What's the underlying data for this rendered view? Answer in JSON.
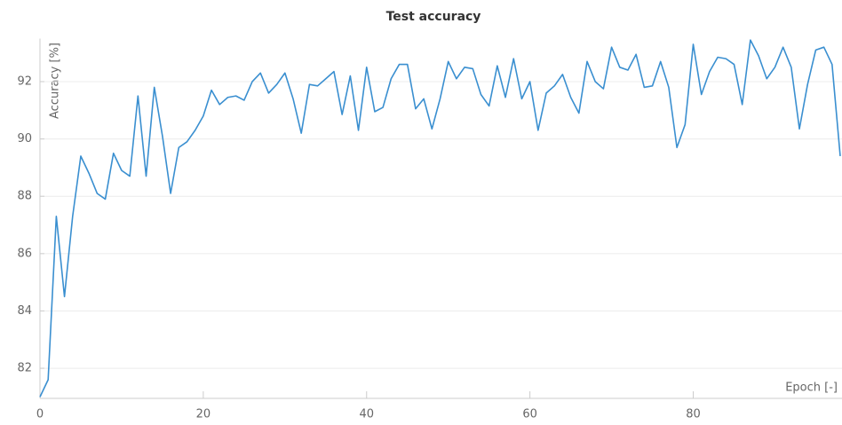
{
  "chart_data": {
    "type": "line",
    "title": "Test accuracy",
    "x_label": "Epoch [-]",
    "y_label": "Accuracy [%]",
    "x": [
      0,
      1,
      2,
      3,
      4,
      5,
      6,
      7,
      8,
      9,
      10,
      11,
      12,
      13,
      14,
      15,
      16,
      17,
      18,
      19,
      20,
      21,
      22,
      23,
      24,
      25,
      26,
      27,
      28,
      29,
      30,
      31,
      32,
      33,
      34,
      35,
      36,
      37,
      38,
      39,
      40,
      41,
      42,
      43,
      44,
      45,
      46,
      47,
      48,
      49,
      50,
      51,
      52,
      53,
      54,
      55,
      56,
      57,
      58,
      59,
      60,
      61,
      62,
      63,
      64,
      65,
      66,
      67,
      68,
      69,
      70,
      71,
      72,
      73,
      74,
      75,
      76,
      77,
      78,
      79,
      80,
      81,
      82,
      83,
      84,
      85,
      86,
      87,
      88,
      89,
      90,
      91,
      92,
      93,
      94,
      95,
      96,
      97,
      98
    ],
    "series": [
      {
        "name": "Test accuracy",
        "color": "#3a8fd0",
        "values": [
          81.0,
          81.6,
          87.3,
          84.5,
          87.3,
          89.4,
          88.8,
          88.1,
          87.9,
          89.5,
          88.9,
          88.7,
          91.5,
          88.7,
          91.8,
          90.1,
          88.1,
          89.7,
          89.9,
          90.3,
          90.8,
          91.7,
          91.2,
          91.45,
          91.5,
          91.35,
          92.0,
          92.3,
          91.6,
          91.9,
          92.3,
          91.4,
          90.2,
          91.9,
          91.85,
          92.1,
          92.35,
          90.85,
          92.2,
          90.3,
          92.5,
          90.95,
          91.1,
          92.1,
          92.6,
          92.6,
          91.05,
          91.4,
          90.35,
          91.4,
          92.7,
          92.1,
          92.5,
          92.45,
          91.55,
          91.15,
          92.55,
          91.45,
          92.8,
          91.4,
          92.0,
          90.3,
          91.6,
          91.85,
          92.25,
          91.45,
          90.9,
          92.7,
          92.0,
          91.75,
          93.2,
          92.5,
          92.4,
          92.95,
          91.8,
          91.85,
          92.7,
          91.8,
          89.7,
          90.5,
          93.3,
          91.55,
          92.35,
          92.85,
          92.8,
          92.6,
          91.2,
          93.45,
          92.9,
          92.1,
          92.5,
          93.2,
          92.5,
          90.35,
          91.9,
          93.1,
          93.2,
          92.6,
          89.4
        ]
      }
    ],
    "xlim": [
      0,
      98
    ],
    "ylim": [
      80.95,
      93.5
    ],
    "xticks": [
      0,
      20,
      40,
      60,
      80
    ],
    "yticks": [
      82,
      84,
      86,
      88,
      90,
      92
    ],
    "grid": true
  }
}
